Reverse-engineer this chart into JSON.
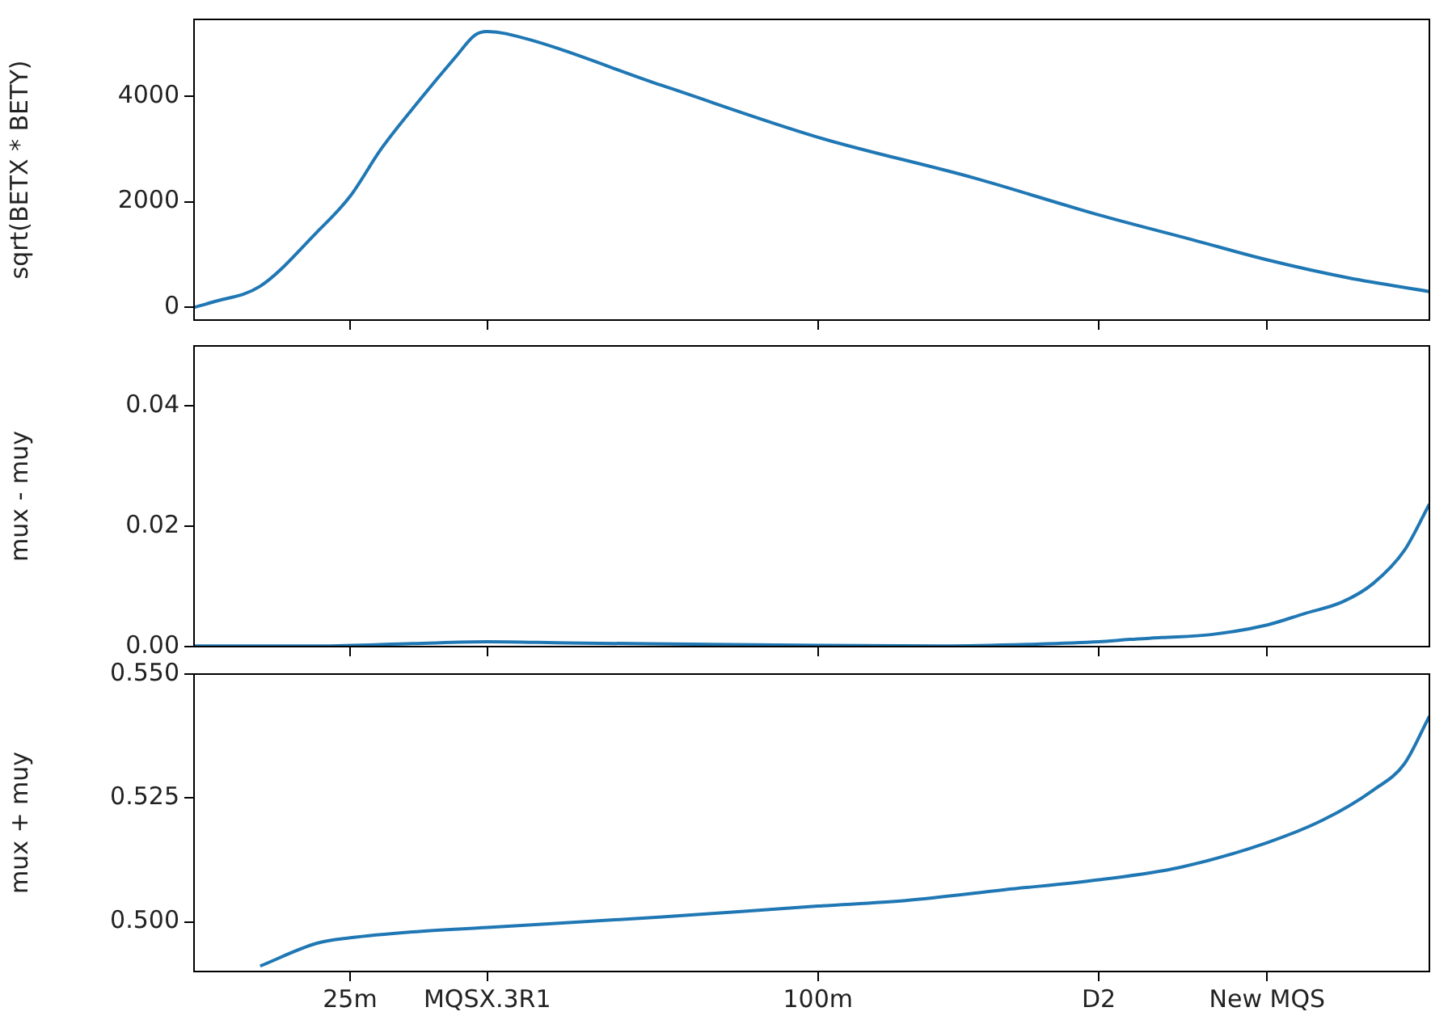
{
  "chart_data": [
    {
      "type": "line",
      "ylabel": "sqrt(BETX * BETY)",
      "xlim": [
        0,
        198
      ],
      "ylim": [
        -240,
        5450
      ],
      "yticks": [
        0,
        2000,
        4000
      ],
      "xticks": [
        {
          "value": 25,
          "label": null
        },
        {
          "value": 47,
          "label": null
        },
        {
          "value": 100,
          "label": null
        },
        {
          "value": 145,
          "label": null
        },
        {
          "value": 172,
          "label": null
        }
      ],
      "tick_labels": "y",
      "grid": false,
      "series": [
        {
          "color": "#1f77b4",
          "x": [
            0,
            3,
            10.6,
            19.5,
            25,
            30,
            36,
            42,
            45,
            47,
            50,
            75,
            100,
            125,
            145,
            160,
            172,
            185,
            198
          ],
          "values": [
            0,
            100,
            400,
            1400,
            2100,
            3000,
            3900,
            4750,
            5150,
            5220,
            5180,
            4200,
            3220,
            2450,
            1750,
            1280,
            900,
            560,
            300
          ]
        }
      ]
    },
    {
      "type": "line",
      "ylabel": "mux - muy",
      "xlim": [
        0,
        198
      ],
      "ylim": [
        0,
        0.05
      ],
      "yticks": [
        {
          "value": 0,
          "label": "0.00"
        },
        0.02,
        0.04
      ],
      "xticks": [
        {
          "value": 25,
          "label": null
        },
        {
          "value": 47,
          "label": null
        },
        {
          "value": 100,
          "label": null
        },
        {
          "value": 145,
          "label": null
        },
        {
          "value": 172,
          "label": null
        }
      ],
      "tick_labels": "y",
      "grid": false,
      "series": [
        {
          "color": "#1f77b4",
          "x": [
            0,
            20,
            35,
            47,
            60,
            80,
            100,
            120,
            135,
            145,
            150,
            155,
            163,
            172,
            178,
            184,
            189,
            194,
            198
          ],
          "values": [
            0.0001,
            0.0001,
            0.0005,
            0.0008,
            0.0006,
            0.0004,
            0.0002,
            0.0001,
            0.0004,
            0.0008,
            0.0012,
            0.0015,
            0.002,
            0.0036,
            0.0055,
            0.0074,
            0.0105,
            0.016,
            0.0237
          ]
        }
      ]
    },
    {
      "type": "line",
      "ylabel": "mux + muy",
      "xlim": [
        0,
        198
      ],
      "ylim": [
        0.49,
        0.55
      ],
      "yticks": [
        {
          "value": 0.5,
          "label": "0.500"
        },
        0.525,
        {
          "value": 0.55,
          "label": "0.550"
        }
      ],
      "xticks": [
        {
          "value": 25,
          "label": "25m"
        },
        {
          "value": 47,
          "label": "MQSX.3R1"
        },
        {
          "value": 100,
          "label": "100m"
        },
        {
          "value": 145,
          "label": "D2"
        },
        {
          "value": 172,
          "label": "New MQS"
        }
      ],
      "grid": false,
      "series": [
        {
          "color": "#1f77b4",
          "x": [
            10.6,
            19.7,
            25,
            35,
            47,
            75,
            100,
            114,
            130,
            145,
            158,
            172,
            181,
            189,
            194,
            198
          ],
          "values": [
            0.4911,
            0.4957,
            0.4968,
            0.498,
            0.4989,
            0.501,
            0.5032,
            0.5043,
            0.5065,
            0.5085,
            0.511,
            0.516,
            0.5206,
            0.5266,
            0.5319,
            0.5415
          ]
        }
      ]
    }
  ]
}
